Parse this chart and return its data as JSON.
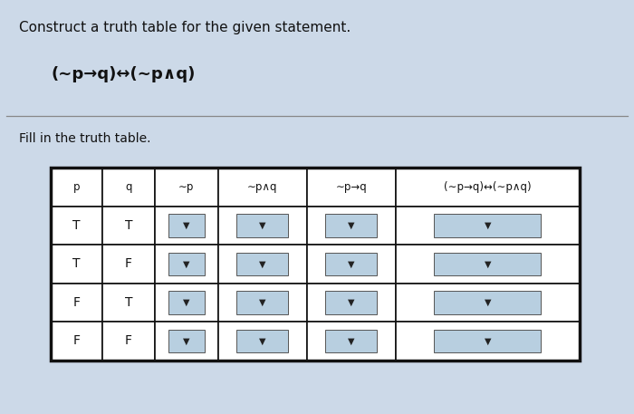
{
  "title": "Construct a truth table for the given statement.",
  "formula": "(∼p→q)↔(∼p∧q)",
  "subtitle": "Fill in the truth table.",
  "columns": [
    "p",
    "q",
    "∼p",
    "∼p∧q",
    "∼p→q",
    "(∼p→q)↔(∼p∧q)"
  ],
  "rows": [
    [
      "T",
      "T"
    ],
    [
      "T",
      "F"
    ],
    [
      "F",
      "T"
    ],
    [
      "F",
      "F"
    ]
  ],
  "bg_color": "#ccd9e8",
  "table_bg": "#ffffff",
  "header_bg": "#ffffff",
  "dropdown_bg": "#b8cfe0",
  "border_color": "#111111",
  "text_color": "#111111",
  "fig_width": 7.0,
  "fig_height": 4.57
}
